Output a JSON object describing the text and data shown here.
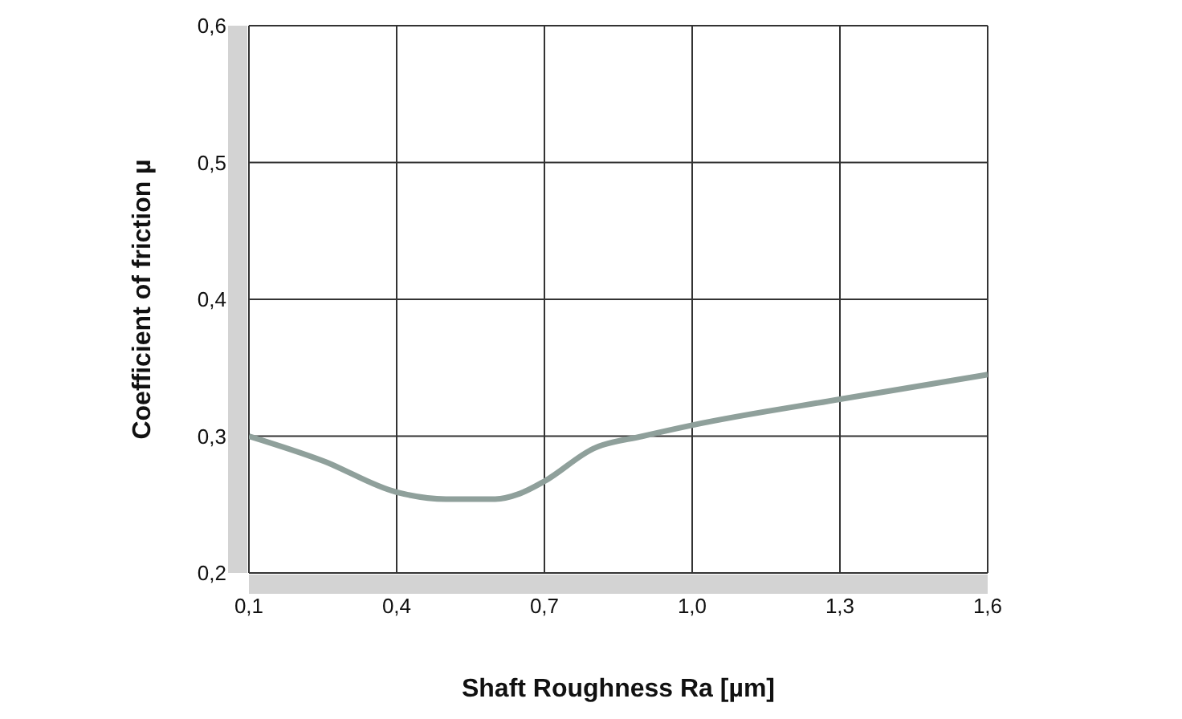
{
  "chart_data": {
    "type": "line",
    "xlabel": "Shaft Roughness Ra [µm]",
    "ylabel": "Coefficient of friction µ",
    "x": [
      0.1,
      0.25,
      0.4,
      0.5,
      0.6,
      0.65,
      0.7,
      0.8,
      0.9,
      1.0,
      1.3,
      1.6
    ],
    "series": [
      {
        "color": "#8fa09b",
        "values": [
          0.3,
          0.282,
          0.259,
          0.254,
          0.254,
          0.258,
          0.267,
          0.291,
          0.3,
          0.308,
          0.327,
          0.345
        ]
      }
    ],
    "xlim": [
      0.1,
      1.6
    ],
    "xticks": [
      {
        "value": 0.1,
        "label": "0,1"
      },
      {
        "value": 0.4,
        "label": "0,4"
      },
      {
        "value": 0.7,
        "label": "0,7"
      },
      {
        "value": 1.0,
        "label": "1,0"
      },
      {
        "value": 1.3,
        "label": "1,3"
      },
      {
        "value": 1.6,
        "label": "1,6"
      }
    ],
    "ylim": [
      0.2,
      0.6
    ],
    "yticks": [
      {
        "value": 0.2,
        "label": "0,2"
      },
      {
        "value": 0.3,
        "label": "0,3"
      },
      {
        "value": 0.4,
        "label": "0,4"
      },
      {
        "value": 0.5,
        "label": "0,5"
      },
      {
        "value": 0.6,
        "label": "0,6"
      }
    ],
    "grid": true,
    "marker": "none",
    "line_style": "solid"
  }
}
